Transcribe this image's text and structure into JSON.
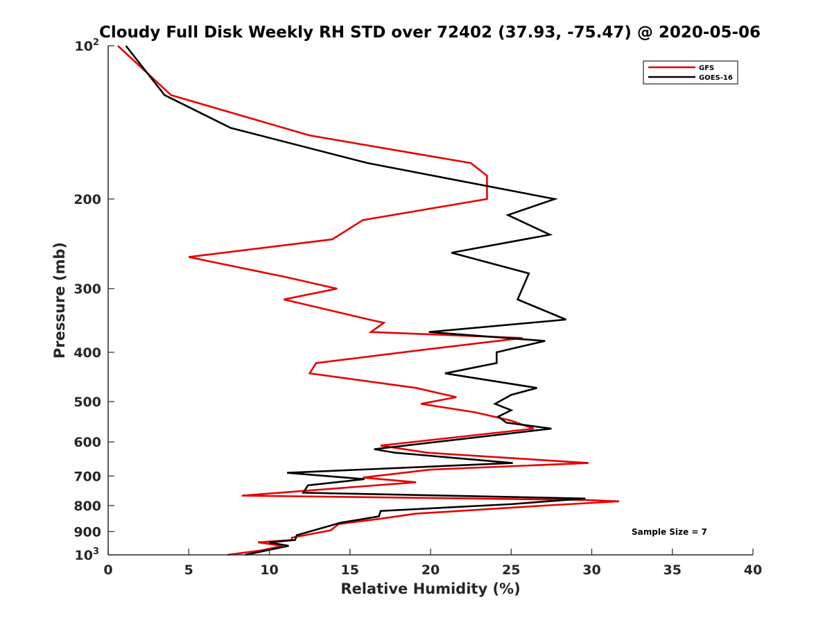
{
  "chart_data": {
    "type": "line",
    "title": "Cloudy Full Disk Weekly RH STD over 72402 (37.93, -75.47) @ 2020-05-06",
    "xlabel": "Relative Humidity (%)",
    "ylabel": "Pressure (mb)",
    "xlim": [
      0,
      40
    ],
    "ylim": [
      100,
      1000
    ],
    "yscale": "log",
    "y_reversed": true,
    "grid": false,
    "legend_position": "top-right",
    "x_ticks": [
      "0",
      "5",
      "10",
      "15",
      "20",
      "25",
      "30",
      "35",
      "40"
    ],
    "y_ticks": [
      {
        "value": 100,
        "base": "10",
        "exp": "2"
      },
      {
        "value": 200,
        "label": "200"
      },
      {
        "value": 300,
        "label": "300"
      },
      {
        "value": 400,
        "label": "400"
      },
      {
        "value": 500,
        "label": "500"
      },
      {
        "value": 600,
        "label": "600"
      },
      {
        "value": 700,
        "label": "700"
      },
      {
        "value": 800,
        "label": "800"
      },
      {
        "value": 900,
        "label": "900"
      },
      {
        "value": 1000,
        "base": "10",
        "exp": "3"
      }
    ],
    "annotation": "Sample Size = 7",
    "series": [
      {
        "name": "GFS",
        "color": "#e60000",
        "points": [
          [
            0.6,
            100
          ],
          [
            3.9,
            125
          ],
          [
            12.5,
            150
          ],
          [
            22.5,
            170
          ],
          [
            23.5,
            180
          ],
          [
            23.5,
            200
          ],
          [
            15.8,
            220
          ],
          [
            13.9,
            240
          ],
          [
            5.0,
            260
          ],
          [
            11.1,
            285
          ],
          [
            14.2,
            300
          ],
          [
            10.9,
            315
          ],
          [
            16.2,
            345
          ],
          [
            17.1,
            350
          ],
          [
            16.3,
            365
          ],
          [
            25.7,
            375
          ],
          [
            19.7,
            395
          ],
          [
            12.9,
            420
          ],
          [
            12.5,
            440
          ],
          [
            19.1,
            470
          ],
          [
            21.6,
            490
          ],
          [
            19.4,
            505
          ],
          [
            22.8,
            525
          ],
          [
            25.0,
            545
          ],
          [
            26.4,
            565
          ],
          [
            16.9,
            610
          ],
          [
            19.8,
            630
          ],
          [
            29.8,
            660
          ],
          [
            20.0,
            680
          ],
          [
            15.8,
            705
          ],
          [
            19.1,
            720
          ],
          [
            8.3,
            765
          ],
          [
            29.6,
            780
          ],
          [
            31.7,
            785
          ],
          [
            27.1,
            800
          ],
          [
            19.1,
            830
          ],
          [
            16.8,
            850
          ],
          [
            14.3,
            870
          ],
          [
            13.8,
            895
          ],
          [
            11.4,
            925
          ],
          [
            11.4,
            935
          ],
          [
            9.3,
            945
          ],
          [
            10.8,
            960
          ],
          [
            9.5,
            980
          ],
          [
            7.4,
            1000
          ]
        ]
      },
      {
        "name": "GOES-16",
        "color": "#000000",
        "points": [
          [
            1.1,
            100
          ],
          [
            3.5,
            125
          ],
          [
            7.6,
            145
          ],
          [
            16.1,
            170
          ],
          [
            27.7,
            200
          ],
          [
            24.8,
            215
          ],
          [
            27.4,
            235
          ],
          [
            21.3,
            255
          ],
          [
            26.1,
            280
          ],
          [
            25.4,
            315
          ],
          [
            28.4,
            345
          ],
          [
            19.9,
            365
          ],
          [
            27.1,
            380
          ],
          [
            24.1,
            400
          ],
          [
            24.1,
            420
          ],
          [
            20.9,
            440
          ],
          [
            26.6,
            470
          ],
          [
            25.0,
            485
          ],
          [
            24.0,
            505
          ],
          [
            25.0,
            520
          ],
          [
            24.2,
            535
          ],
          [
            24.7,
            550
          ],
          [
            27.5,
            565
          ],
          [
            16.5,
            620
          ],
          [
            17.8,
            630
          ],
          [
            25.1,
            660
          ],
          [
            11.1,
            690
          ],
          [
            15.9,
            710
          ],
          [
            12.4,
            730
          ],
          [
            12.1,
            755
          ],
          [
            29.6,
            775
          ],
          [
            25.0,
            795
          ],
          [
            16.9,
            820
          ],
          [
            16.8,
            840
          ],
          [
            14.4,
            865
          ],
          [
            11.7,
            915
          ],
          [
            11.6,
            935
          ],
          [
            10.0,
            945
          ],
          [
            11.2,
            960
          ],
          [
            8.5,
            1000
          ]
        ]
      }
    ]
  }
}
